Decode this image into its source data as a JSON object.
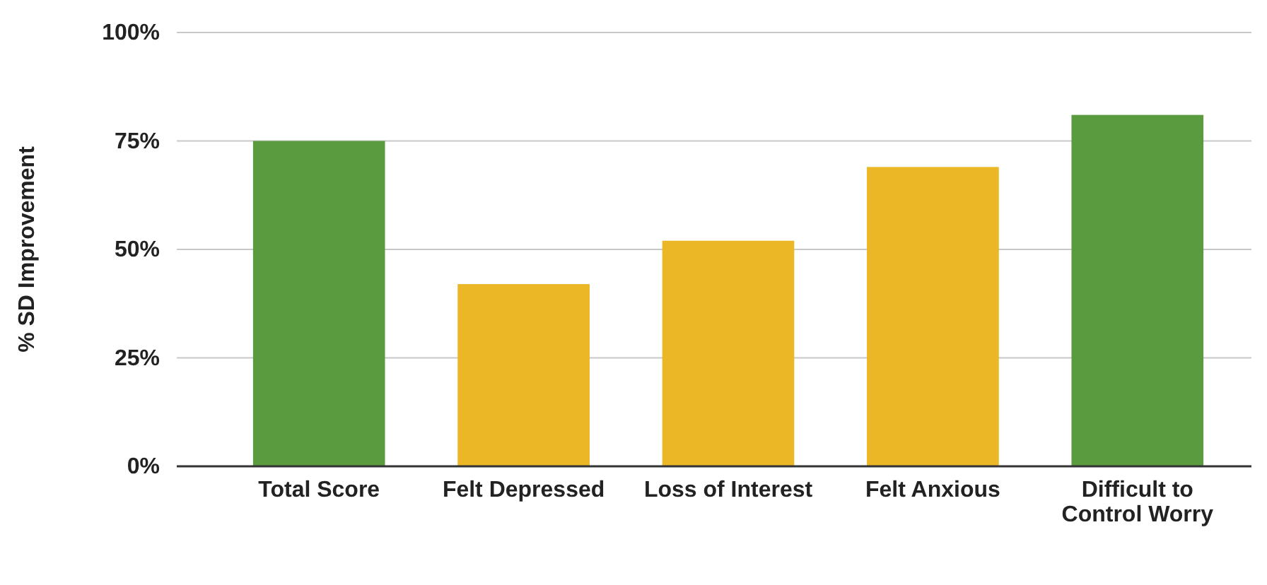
{
  "chart_data": {
    "type": "bar",
    "ylabel": "% SD Improvement",
    "categories": [
      "Total Score",
      "Felt Depressed",
      "Loss of Interest",
      "Felt Anxious",
      "Difficult to Control Worry"
    ],
    "values": [
      75,
      42,
      52,
      69,
      81
    ],
    "colors": [
      "#5a9b3f",
      "#ebb727",
      "#ebb727",
      "#ebb727",
      "#5a9b3f"
    ],
    "ylim": [
      0,
      100
    ],
    "yticks": [
      {
        "value": 0,
        "label": "0%"
      },
      {
        "value": 25,
        "label": "25%"
      },
      {
        "value": 50,
        "label": "50%"
      },
      {
        "value": 75,
        "label": "75%"
      },
      {
        "value": 100,
        "label": "100%"
      }
    ],
    "grid": "y"
  }
}
